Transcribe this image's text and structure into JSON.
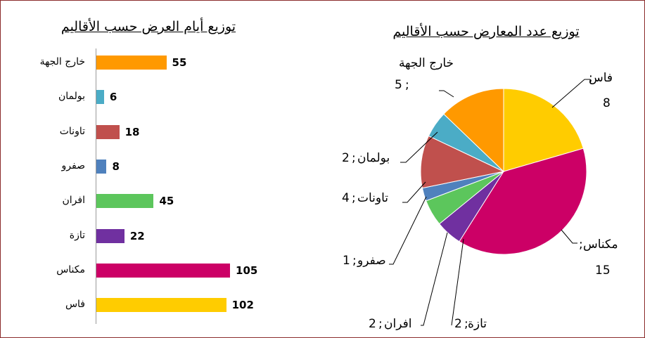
{
  "chart_data": [
    {
      "type": "bar",
      "orientation": "horizontal",
      "title": "توزيع أيام العرض حسب الأقاليم",
      "categories": [
        "خارج الجهة",
        "بولمان",
        "تاونات",
        "صفرو",
        "افران",
        "تازة",
        "مكناس",
        "فاس"
      ],
      "values": [
        55,
        6,
        18,
        8,
        45,
        22,
        105,
        102
      ],
      "colors": [
        "#ff9900",
        "#4bacc6",
        "#c0504d",
        "#4f81bd",
        "#5cc65c",
        "#7030a0",
        "#cc0066",
        "#ffcc00"
      ],
      "data_labels": true,
      "grid": false
    },
    {
      "type": "pie",
      "title": "توزيع عدد المعارض حسب الأقاليم",
      "slices": [
        {
          "label_name": "فاس",
          "label_value": "8",
          "value": 8,
          "color": "#ffcc00"
        },
        {
          "label_name": "مكناس",
          "label_value": "15",
          "value": 15,
          "color": "#cc0066"
        },
        {
          "label_name": "تازة",
          "label_value": "2",
          "value": 2,
          "color": "#7030a0"
        },
        {
          "label_name": "افران",
          "label_value": "2",
          "value": 2,
          "color": "#5cc65c"
        },
        {
          "label_name": "صفرو",
          "label_value": "1",
          "value": 1,
          "color": "#4f81bd"
        },
        {
          "label_name": "تاونات",
          "label_value": "4",
          "value": 4,
          "color": "#c0504d"
        },
        {
          "label_name": "بولمان",
          "label_value": "2",
          "value": 2,
          "color": "#4bacc6"
        },
        {
          "label_name": "خارج الجهة",
          "label_value": "5",
          "value": 5,
          "color": "#ff9900"
        }
      ],
      "separator": ";",
      "start": "top",
      "direction": "clockwise",
      "legend": "none",
      "label_lines": true
    }
  ]
}
